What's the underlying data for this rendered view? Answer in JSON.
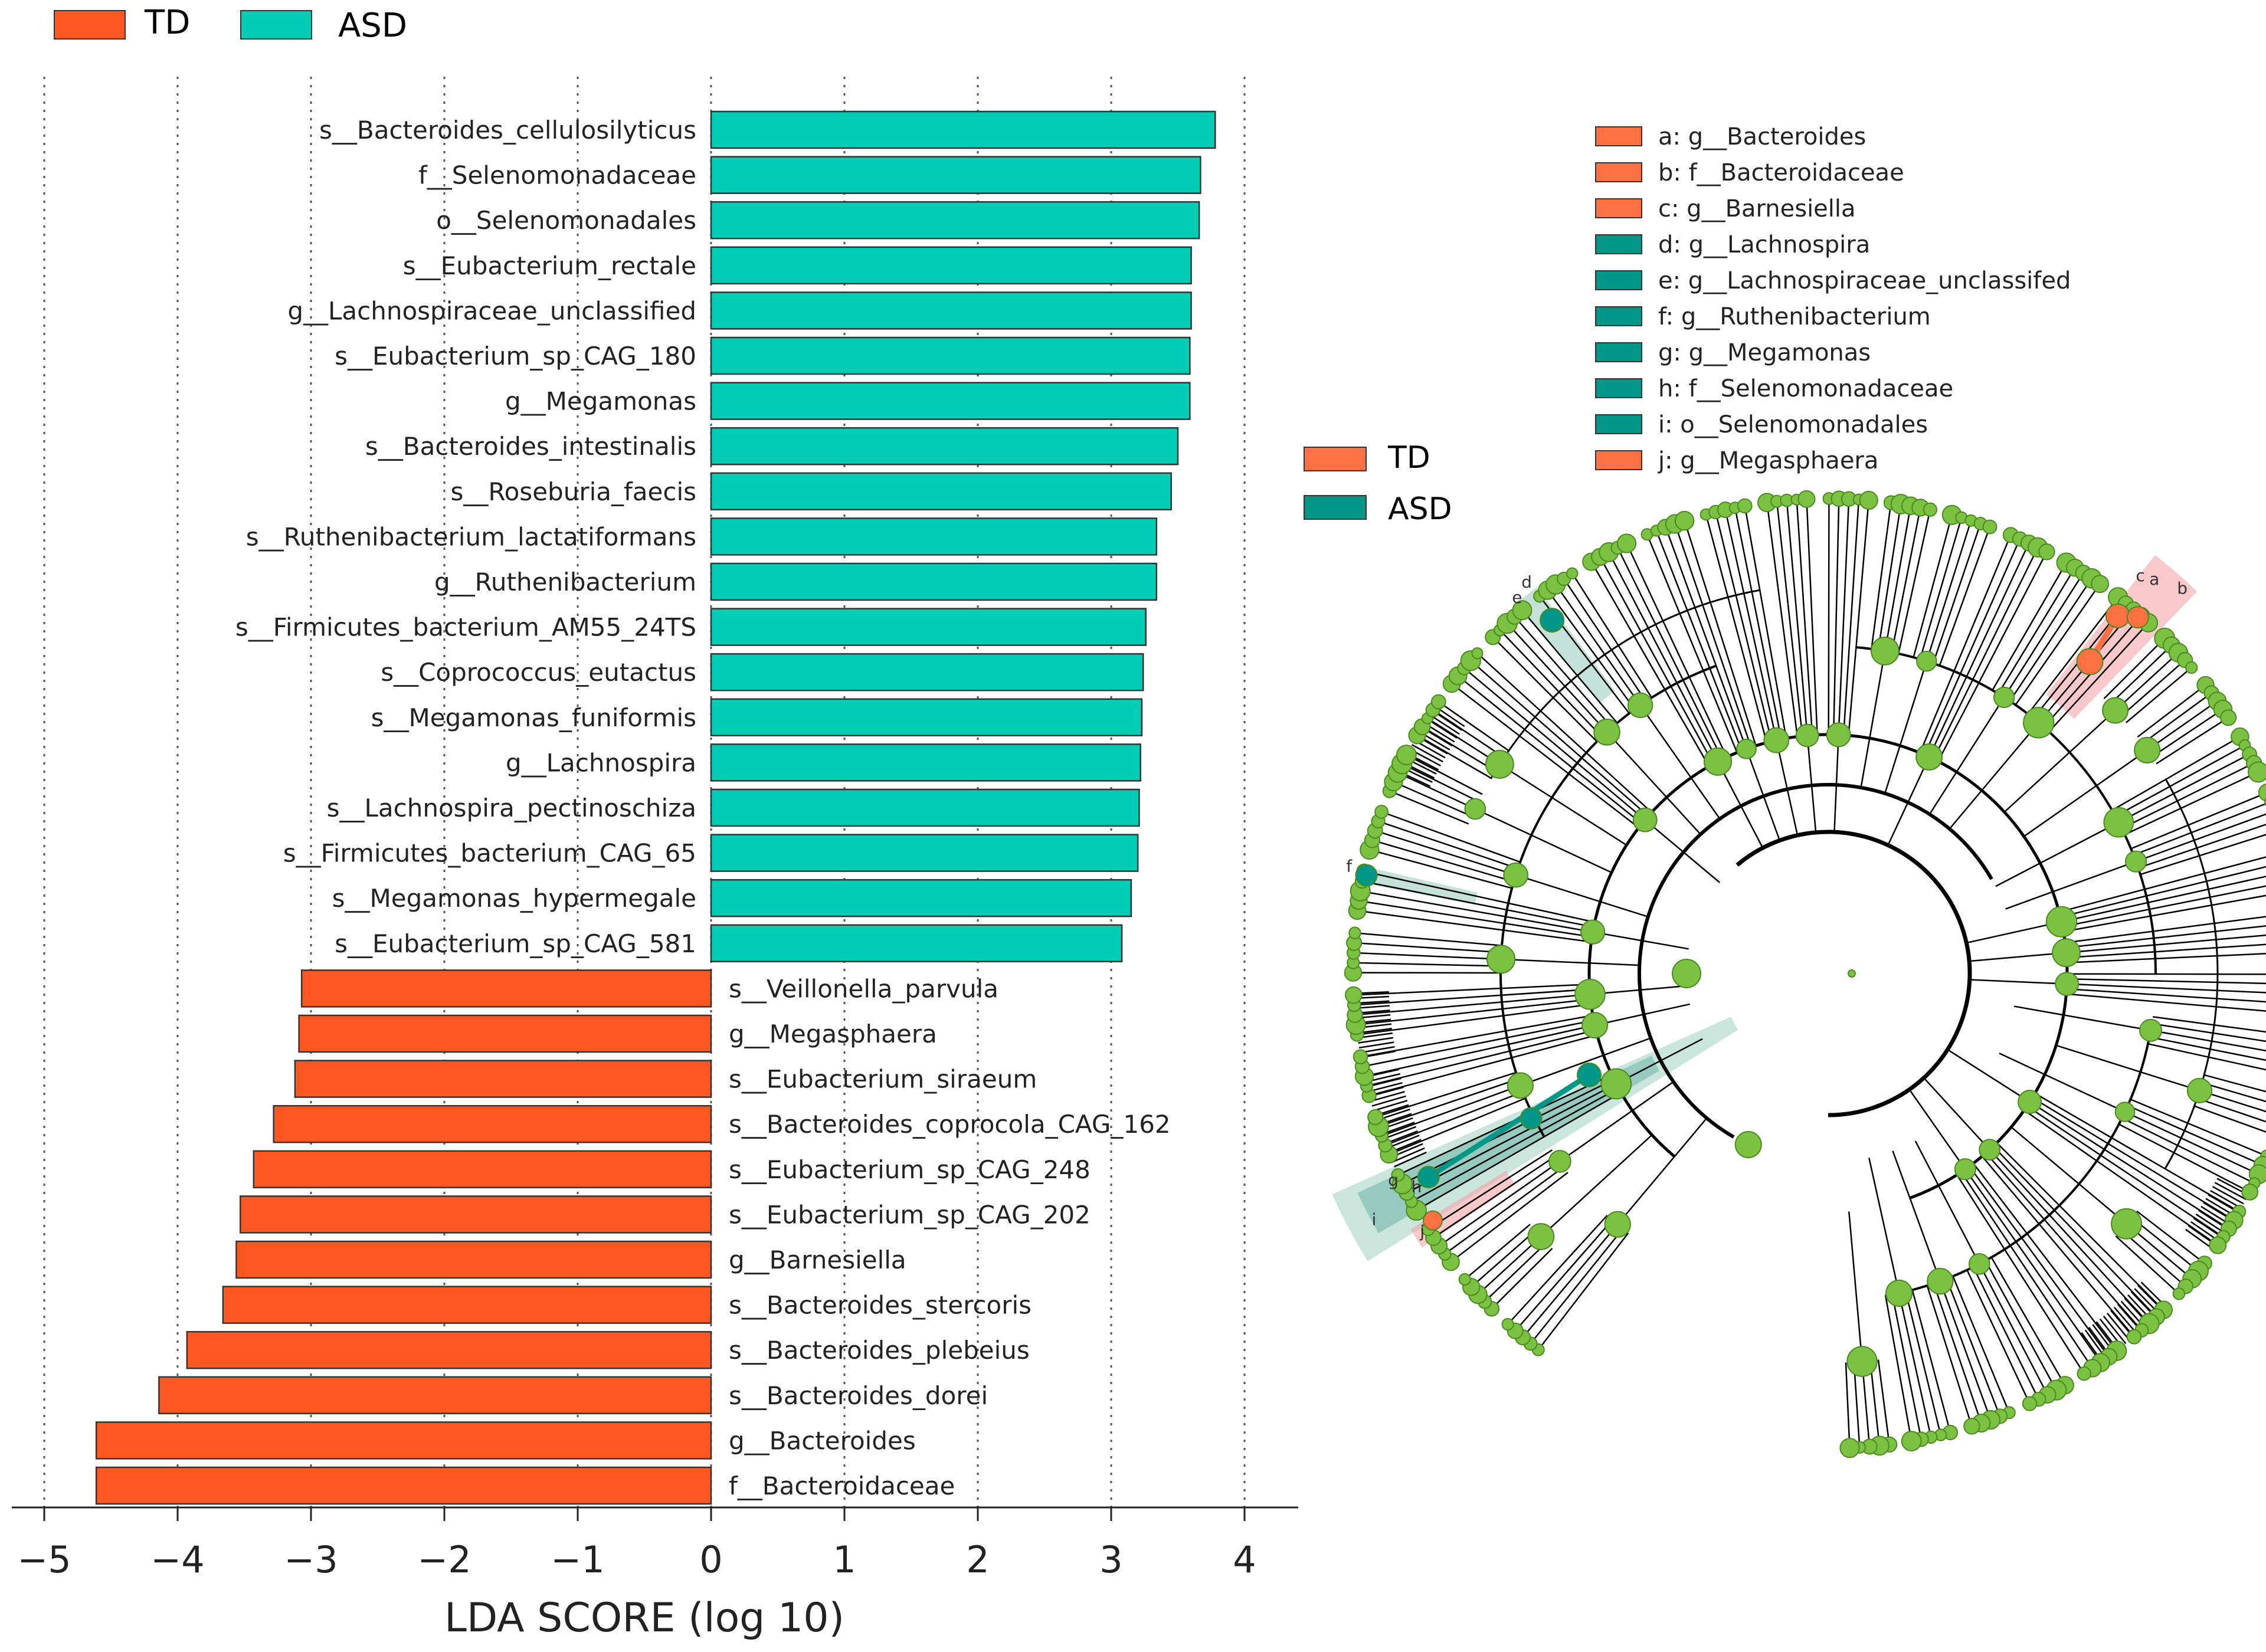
{
  "colors": {
    "td_bar": "#ff5722",
    "asd_bar": "#00cdb4",
    "td_node": "#ff7043",
    "asd_node": "#009688",
    "node": "#7cc242",
    "node_edge": "#4a8a20",
    "grid": "#555555"
  },
  "chart_data": [
    {
      "type": "bar",
      "orientation": "horizontal",
      "title": "",
      "xlabel": "LDA SCORE (log 10)",
      "ylabel": "",
      "xlim": [
        -5,
        4
      ],
      "xticks": [
        -5,
        -4,
        -3,
        -2,
        -1,
        0,
        1,
        2,
        3,
        4
      ],
      "xtick_labels": [
        "−5",
        "−4",
        "−3",
        "−2",
        "−1",
        "0",
        "1",
        "2",
        "3",
        "4"
      ],
      "grid": "vertical dotted",
      "legend": {
        "position": "top-left",
        "entries": [
          {
            "name": "TD",
            "color": "#ff5722"
          },
          {
            "name": "ASD",
            "color": "#00cdb4"
          }
        ]
      },
      "series": [
        {
          "name": "ASD",
          "items": [
            {
              "label": "s__Bacteroides_cellulosilyticus",
              "value": 3.78
            },
            {
              "label": "f__Selenomonadaceae",
              "value": 3.67
            },
            {
              "label": "o__Selenomonadales",
              "value": 3.66
            },
            {
              "label": "s__Eubacterium_rectale",
              "value": 3.6
            },
            {
              "label": "g__Lachnospiraceae_unclassified",
              "value": 3.6
            },
            {
              "label": "s__Eubacterium_sp_CAG_180",
              "value": 3.59
            },
            {
              "label": "g__Megamonas",
              "value": 3.59
            },
            {
              "label": "s__Bacteroides_intestinalis",
              "value": 3.5
            },
            {
              "label": "s__Roseburia_faecis",
              "value": 3.45
            },
            {
              "label": "s__Ruthenibacterium_lactatiformans",
              "value": 3.34
            },
            {
              "label": "g__Ruthenibacterium",
              "value": 3.34
            },
            {
              "label": "s__Firmicutes_bacterium_AM55_24TS",
              "value": 3.26
            },
            {
              "label": "s__Coprococcus_eutactus",
              "value": 3.24
            },
            {
              "label": "s__Megamonas_funiformis",
              "value": 3.23
            },
            {
              "label": "g__Lachnospira",
              "value": 3.22
            },
            {
              "label": "s__Lachnospira_pectinoschiza",
              "value": 3.21
            },
            {
              "label": "s__Firmicutes_bacterium_CAG_65",
              "value": 3.2
            },
            {
              "label": "s__Megamonas_hypermegale",
              "value": 3.15
            },
            {
              "label": "s__Eubacterium_sp_CAG_581",
              "value": 3.08
            }
          ]
        },
        {
          "name": "TD",
          "items": [
            {
              "label": "s__Veillonella_parvula",
              "value": -3.07
            },
            {
              "label": "g__Megasphaera",
              "value": -3.09
            },
            {
              "label": "s__Eubacterium_siraeum",
              "value": -3.12
            },
            {
              "label": "s__Bacteroides_coprocola_CAG_162",
              "value": -3.28
            },
            {
              "label": "s__Eubacterium_sp_CAG_248",
              "value": -3.43
            },
            {
              "label": "s__Eubacterium_sp_CAG_202",
              "value": -3.53
            },
            {
              "label": "g__Barnesiella",
              "value": -3.56
            },
            {
              "label": "s__Bacteroides_stercoris",
              "value": -3.66
            },
            {
              "label": "s__Bacteroides_plebeius",
              "value": -3.93
            },
            {
              "label": "s__Bacteroides_dorei",
              "value": -4.14
            },
            {
              "label": "g__Bacteroides",
              "value": -4.61
            },
            {
              "label": "f__Bacteroidaceae",
              "value": -4.61
            }
          ]
        }
      ]
    },
    {
      "type": "cladogram",
      "title": "",
      "legend": {
        "position": "center",
        "entries": [
          {
            "name": "TD",
            "color": "#ff7043"
          },
          {
            "name": "ASD",
            "color": "#009688"
          }
        ]
      },
      "taxa_key": [
        {
          "text": "a: g__Bacteroides",
          "group": "TD"
        },
        {
          "text": "b: f__Bacteroidaceae",
          "group": "TD"
        },
        {
          "text": "c: g__Barnesiella",
          "group": "TD"
        },
        {
          "text": "d: g__Lachnospira",
          "group": "ASD"
        },
        {
          "text": "e: g__Lachnospiraceae_unclassifed",
          "group": "ASD"
        },
        {
          "text": "f: g__Ruthenibacterium",
          "group": "ASD"
        },
        {
          "text": "g: g__Megamonas",
          "group": "ASD"
        },
        {
          "text": "h: f__Selenomonadaceae",
          "group": "ASD"
        },
        {
          "text": "i: o__Selenomonadales",
          "group": "ASD"
        },
        {
          "text": "j: g__Megasphaera",
          "group": "TD"
        }
      ],
      "highlight_labels": [
        "a",
        "b",
        "c",
        "d",
        "e",
        "f",
        "g",
        "h",
        "i",
        "j"
      ]
    }
  ]
}
